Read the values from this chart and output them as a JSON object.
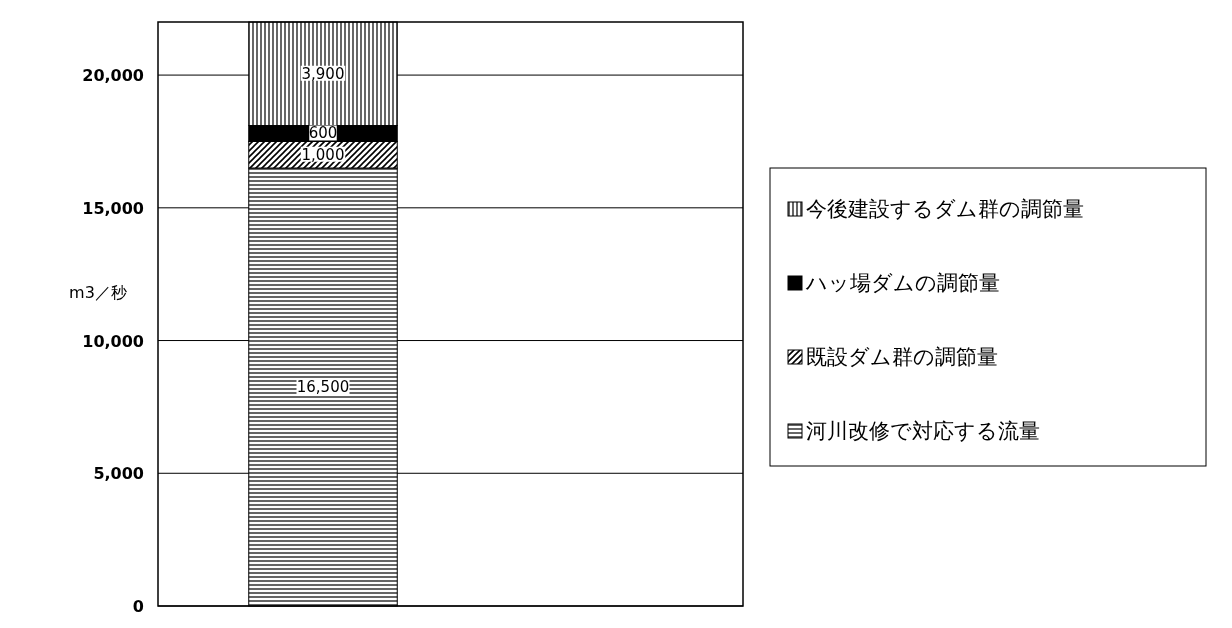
{
  "chart_data": {
    "type": "bar",
    "stacked": true,
    "ylabel": "m3／秒",
    "categories": [
      null
    ],
    "series": [
      {
        "name": "河川改修で対応する流量",
        "color": "#000000",
        "values": [
          16500
        ],
        "value_labels": [
          "16,500"
        ]
      },
      {
        "name": "既設ダム群の調節量",
        "color": "#000000",
        "values": [
          1000
        ],
        "value_labels": [
          "1,000"
        ]
      },
      {
        "name": "ハッ場ダムの調節量",
        "color": "#000000",
        "values": [
          600
        ],
        "value_labels": [
          "600"
        ]
      },
      {
        "name": "今後建設するダム群の調節量",
        "color": "#000000",
        "values": [
          3900
        ],
        "value_labels": [
          "3,900"
        ]
      }
    ],
    "ylim": [
      0,
      22000
    ],
    "yticks": [
      0,
      {
        "value": 5000,
        "label": "5,000"
      },
      {
        "value": 10000,
        "label": "10,000"
      },
      {
        "value": 15000,
        "label": "15,000"
      },
      {
        "value": 20000,
        "label": "20,000"
      }
    ],
    "grid": "y",
    "legend": "right"
  }
}
